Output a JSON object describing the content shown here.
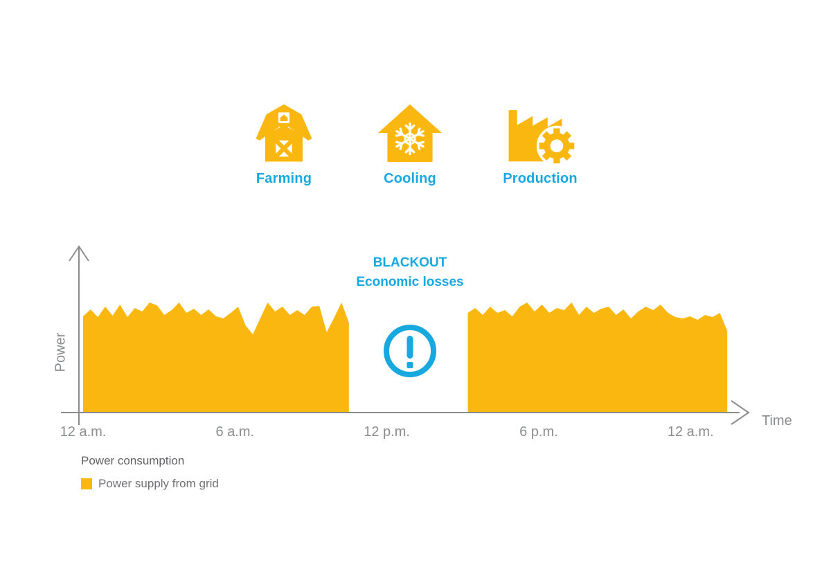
{
  "colors": {
    "yellow": "#FAB70F",
    "cyan": "#18A8E0",
    "axis_gray": "#8A8C8E",
    "text_gray": "#707175",
    "background": "#FFFFFF"
  },
  "sectors": {
    "items": [
      {
        "label": "Farming",
        "icon": "barn-icon"
      },
      {
        "label": "Cooling",
        "icon": "snowflake-house-icon"
      },
      {
        "label": "Production",
        "icon": "factory-gear-icon"
      }
    ]
  },
  "blackout": {
    "title": "BLACKOUT",
    "subtitle": "Economic losses",
    "icon": "exclamation-circle-icon"
  },
  "chart_data": {
    "type": "area",
    "title": "",
    "xlabel": "Time",
    "ylabel": "Power",
    "x_tick_labels": [
      "12 a.m.",
      "6 a.m.",
      "12 p.m.",
      "6 p.m.",
      "12 a.m."
    ],
    "x_tick_hours": [
      0,
      6,
      12,
      18,
      24
    ],
    "y_units": "arbitrary (axis unlabeled)",
    "ylim": [
      0,
      240
    ],
    "grid": false,
    "legend_title": "Power consumption",
    "legend_position": "bottom-left",
    "series": [
      {
        "name": "Power supply from grid",
        "color": "#FAB70F",
        "segments": [
          {
            "start_hour": 0,
            "end_hour": 10.5,
            "values": [
              139,
              149,
              138,
              153,
              140,
              156,
              138,
              151,
              146,
              159,
              155,
              141,
              148,
              159,
              144,
              150,
              141,
              149,
              139,
              136,
              144,
              153,
              126,
              113,
              136,
              159,
              146,
              153,
              141,
              148,
              141,
              153,
              154,
              116,
              137,
              159,
              130
            ]
          },
          {
            "start_hour": 15.2,
            "end_hour": 25.45,
            "values": [
              144,
              151,
              141,
              153,
              144,
              148,
              139,
              153,
              159,
              146,
              156,
              144,
              151,
              148,
              159,
              141,
              153,
              144,
              150,
              153,
              141,
              149,
              136,
              146,
              153,
              148,
              156,
              144,
              138,
              136,
              139,
              134,
              141,
              138,
              144,
              118
            ]
          }
        ]
      }
    ],
    "gap": {
      "from_hour": 10.5,
      "to_hour": 15.2,
      "annotation_line1": "BLACKOUT",
      "annotation_line2": "Economic losses"
    }
  }
}
